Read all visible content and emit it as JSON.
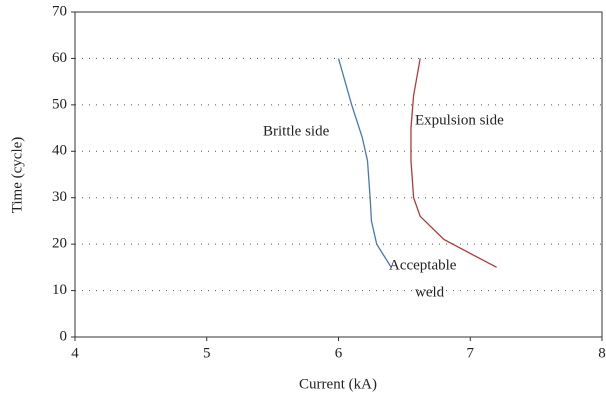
{
  "chart_data": {
    "type": "line",
    "xlabel": "Current (kA)",
    "ylabel": "Time (cycle)",
    "xlim": [
      4,
      8
    ],
    "ylim": [
      0,
      70
    ],
    "xticks": [
      4,
      5,
      6,
      7,
      8
    ],
    "yticks": [
      0,
      10,
      20,
      30,
      40,
      50,
      60,
      70
    ],
    "grid": true,
    "series": [
      {
        "color": "#4a78b5",
        "x": [
          6.0,
          6.1,
          6.18,
          6.22,
          6.24,
          6.25,
          6.29,
          6.4
        ],
        "values": [
          60,
          50,
          43,
          38,
          30,
          25,
          20,
          15
        ]
      },
      {
        "color": "#b03a3a",
        "x": [
          6.62,
          6.57,
          6.55,
          6.55,
          6.57,
          6.62,
          6.8,
          7.2
        ],
        "values": [
          60,
          52,
          45,
          38,
          30,
          26,
          21,
          15
        ]
      }
    ],
    "annotations": [
      {
        "lines": [
          "Brittle side"
        ]
      },
      {
        "lines": [
          "Expulsion side"
        ]
      },
      {
        "lines": [
          "Acceptable",
          "weld"
        ]
      }
    ]
  }
}
